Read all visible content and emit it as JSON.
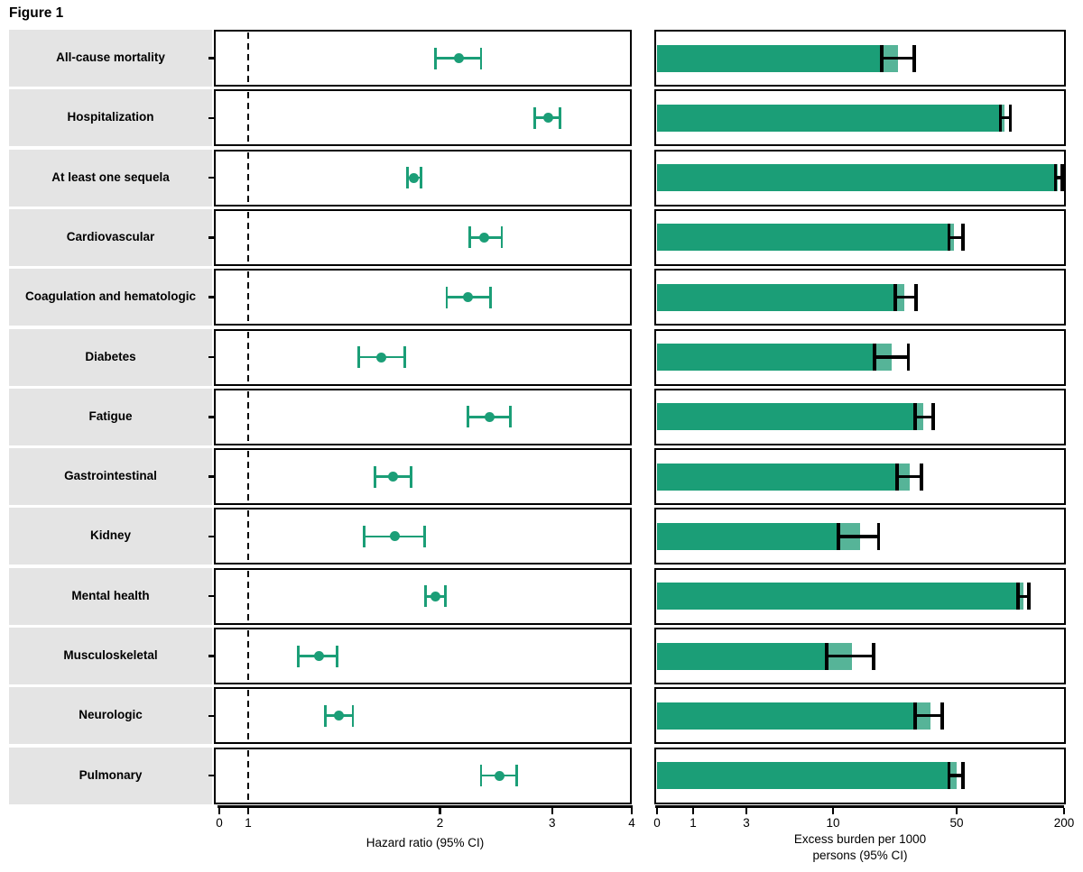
{
  "chart_data": {
    "type": "forest-plot-with-bars",
    "title": "Figure 1",
    "outcomes": [
      "All-cause mortality",
      "Hospitalization",
      "At least one sequela",
      "Cardiovascular",
      "Coagulation and hematologic",
      "Diabetes",
      "Fatigue",
      "Gastrointestinal",
      "Kidney",
      "Mental health",
      "Musculoskeletal",
      "Neurologic",
      "Pulmonary"
    ],
    "hazard_ratio": {
      "axis_label": "Hazard ratio (95% CI)",
      "ticks": [
        0,
        1,
        2,
        3,
        4
      ],
      "xlim": [
        0,
        4
      ],
      "scale": "log above 1",
      "reference_line": 1,
      "values": [
        {
          "hr": 2.14,
          "lo": 1.97,
          "hi": 2.32
        },
        {
          "hr": 2.96,
          "lo": 2.82,
          "hi": 3.09
        },
        {
          "hr": 1.82,
          "lo": 1.78,
          "hi": 1.87
        },
        {
          "hr": 2.35,
          "lo": 2.23,
          "hi": 2.5
        },
        {
          "hr": 2.21,
          "lo": 2.05,
          "hi": 2.4
        },
        {
          "hr": 1.62,
          "lo": 1.49,
          "hi": 1.76
        },
        {
          "hr": 2.39,
          "lo": 2.21,
          "hi": 2.58
        },
        {
          "hr": 1.69,
          "lo": 1.58,
          "hi": 1.8
        },
        {
          "hr": 1.7,
          "lo": 1.52,
          "hi": 1.89
        },
        {
          "hr": 1.97,
          "lo": 1.9,
          "hi": 2.04
        },
        {
          "hr": 1.29,
          "lo": 1.2,
          "hi": 1.38
        },
        {
          "hr": 1.39,
          "lo": 1.32,
          "hi": 1.46
        },
        {
          "hr": 2.48,
          "lo": 2.32,
          "hi": 2.64
        }
      ]
    },
    "excess_burden": {
      "axis_label": "Excess burden per 1000 persons (95% CI)",
      "axis_label_lines": [
        "Excess burden per 1000",
        "persons (95% CI)"
      ],
      "ticks": [
        0,
        1,
        3,
        10,
        50,
        200
      ],
      "xlim": [
        0,
        200
      ],
      "scale": "pseudo-log",
      "values": [
        {
          "burden": 23.3,
          "lo": 18.9,
          "hi": 28.8
        },
        {
          "burden": 93.0,
          "lo": 88.0,
          "hi": 100.0
        },
        {
          "burden": 185.0,
          "lo": 179.0,
          "hi": 196.0
        },
        {
          "burden": 48.4,
          "lo": 45.3,
          "hi": 54.0
        },
        {
          "burden": 25.2,
          "lo": 22.4,
          "hi": 29.5
        },
        {
          "burden": 21.5,
          "lo": 17.2,
          "hi": 26.7
        },
        {
          "burden": 32.5,
          "lo": 29.1,
          "hi": 36.8
        },
        {
          "burden": 27.0,
          "lo": 23.0,
          "hi": 31.5
        },
        {
          "burden": 14.2,
          "lo": 10.7,
          "hi": 18.1
        },
        {
          "burden": 118.0,
          "lo": 110.0,
          "hi": 127.0
        },
        {
          "burden": 12.8,
          "lo": 9.2,
          "hi": 17.0
        },
        {
          "burden": 35.5,
          "lo": 29.2,
          "hi": 41.6
        },
        {
          "burden": 49.9,
          "lo": 45.3,
          "hi": 54.4
        }
      ]
    },
    "colors": {
      "bar_green": "#1b9e77",
      "bar_green_light": "#56b498",
      "label_background": "#e4e4e4",
      "frame_and_text": "#000000"
    },
    "legend": null,
    "grid": false
  }
}
